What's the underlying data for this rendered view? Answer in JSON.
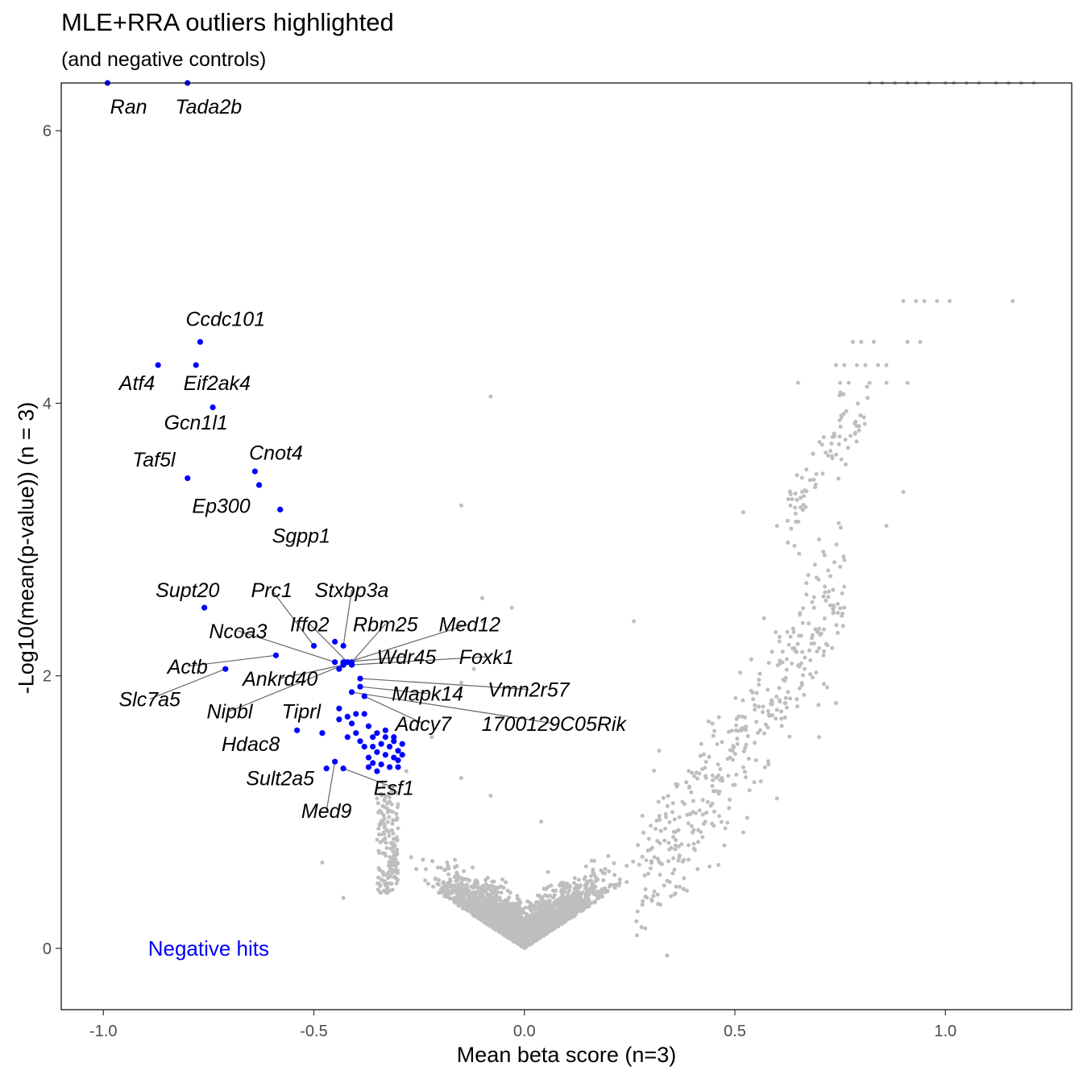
{
  "title": "MLE+RRA outliers highlighted",
  "subtitle": "(and negative controls)",
  "chart_data": {
    "type": "scatter",
    "xlabel": "Mean beta score (n=3)",
    "ylabel": "-Log10(mean(p-value)) (n = 3)",
    "xlim": [
      -1.1,
      1.3
    ],
    "ylim": [
      -0.45,
      6.35
    ],
    "xticks": [
      -1.0,
      -0.5,
      0.0,
      0.5,
      1.0
    ],
    "xtick_labels": [
      "-1.0",
      "-0.5",
      "0.0",
      "0.5",
      "1.0"
    ],
    "yticks": [
      0,
      2,
      4,
      6
    ],
    "ytick_labels": [
      "0",
      "2",
      "4",
      "6"
    ],
    "grid": false,
    "colors": {
      "highlight": "#0000ff",
      "background": "#bebebe",
      "leader": "#666666",
      "axis": "#000000"
    },
    "annotation": {
      "text": "Negative hits",
      "x": -0.75,
      "y": 0.0,
      "color": "#0000ff"
    },
    "labeled_points": [
      {
        "label": "Ran",
        "x": -0.99,
        "y": 6.35,
        "lx": -0.94,
        "ly": 6.18
      },
      {
        "label": "Tada2b",
        "x": -0.8,
        "y": 6.35,
        "lx": -0.75,
        "ly": 6.18
      },
      {
        "label": "Ccdc101",
        "x": -0.77,
        "y": 4.45,
        "lx": -0.71,
        "ly": 4.62
      },
      {
        "label": "Atf4",
        "x": -0.87,
        "y": 4.28,
        "lx": -0.92,
        "ly": 4.15
      },
      {
        "label": "Eif2ak4",
        "x": -0.78,
        "y": 4.28,
        "lx": -0.73,
        "ly": 4.15
      },
      {
        "label": "Gcn1l1",
        "x": -0.74,
        "y": 3.97,
        "lx": -0.78,
        "ly": 3.86
      },
      {
        "label": "Taf5l",
        "x": -0.8,
        "y": 3.45,
        "lx": -0.88,
        "ly": 3.59
      },
      {
        "label": "Cnot4",
        "x": -0.64,
        "y": 3.5,
        "lx": -0.59,
        "ly": 3.64
      },
      {
        "label": "Ep300",
        "x": -0.63,
        "y": 3.4,
        "lx": -0.72,
        "ly": 3.25
      },
      {
        "label": "Sgpp1",
        "x": -0.58,
        "y": 3.22,
        "lx": -0.53,
        "ly": 3.03
      },
      {
        "label": "Supt20",
        "x": -0.76,
        "y": 2.5,
        "lx": -0.8,
        "ly": 2.63
      },
      {
        "label": "Prc1",
        "x": -0.5,
        "y": 2.22,
        "lx": -0.6,
        "ly": 2.63
      },
      {
        "label": "Stxbp3a",
        "x": -0.43,
        "y": 2.22,
        "lx": -0.41,
        "ly": 2.63
      },
      {
        "label": "Iffo2",
        "x": -0.42,
        "y": 2.1,
        "lx": -0.51,
        "ly": 2.38
      },
      {
        "label": "Rbm25",
        "x": -0.41,
        "y": 2.1,
        "lx": -0.33,
        "ly": 2.38
      },
      {
        "label": "Med12",
        "x": -0.42,
        "y": 2.1,
        "lx": -0.13,
        "ly": 2.38
      },
      {
        "label": "Ncoa3",
        "x": -0.45,
        "y": 2.1,
        "lx": -0.68,
        "ly": 2.33
      },
      {
        "label": "Wdr45",
        "x": -0.43,
        "y": 2.1,
        "lx": -0.28,
        "ly": 2.14
      },
      {
        "label": "Foxk1",
        "x": -0.41,
        "y": 2.08,
        "lx": -0.09,
        "ly": 2.14
      },
      {
        "label": "Actb",
        "x": -0.59,
        "y": 2.15,
        "lx": -0.8,
        "ly": 2.07
      },
      {
        "label": "Ankrd40",
        "x": -0.43,
        "y": 2.08,
        "lx": -0.58,
        "ly": 1.98
      },
      {
        "label": "Slc7a5",
        "x": -0.71,
        "y": 2.05,
        "lx": -0.89,
        "ly": 1.83
      },
      {
        "label": "Vmn2r57",
        "x": -0.39,
        "y": 1.98,
        "lx": 0.01,
        "ly": 1.9
      },
      {
        "label": "Mapk14",
        "x": -0.39,
        "y": 1.92,
        "lx": -0.23,
        "ly": 1.87
      },
      {
        "label": "Nipbl",
        "x": -0.43,
        "y": 2.08,
        "lx": -0.7,
        "ly": 1.74
      },
      {
        "label": "Tiprl",
        "x": -0.44,
        "y": 1.76,
        "lx": -0.53,
        "ly": 1.74
      },
      {
        "label": "1700129C05Rik",
        "x": -0.41,
        "y": 1.88,
        "lx": 0.07,
        "ly": 1.65
      },
      {
        "label": "Adcy7",
        "x": -0.38,
        "y": 1.85,
        "lx": -0.24,
        "ly": 1.65
      },
      {
        "label": "Hdac8",
        "x": -0.54,
        "y": 1.6,
        "lx": -0.65,
        "ly": 1.5
      },
      {
        "label": "Sult2a5",
        "x": -0.47,
        "y": 1.32,
        "lx": -0.58,
        "ly": 1.25
      },
      {
        "label": "Esf1",
        "x": -0.43,
        "y": 1.32,
        "lx": -0.31,
        "ly": 1.18
      },
      {
        "label": "Med9",
        "x": -0.45,
        "y": 1.37,
        "lx": -0.47,
        "ly": 1.01
      }
    ],
    "unlabeled_highlight_points": [
      [
        -0.45,
        2.25
      ],
      [
        -0.44,
        2.05
      ],
      [
        -0.4,
        1.72
      ],
      [
        -0.38,
        1.72
      ],
      [
        -0.42,
        1.7
      ],
      [
        -0.44,
        1.68
      ],
      [
        -0.41,
        1.65
      ],
      [
        -0.37,
        1.63
      ],
      [
        -0.35,
        1.58
      ],
      [
        -0.36,
        1.55
      ],
      [
        -0.33,
        1.55
      ],
      [
        -0.31,
        1.52
      ],
      [
        -0.4,
        1.58
      ],
      [
        -0.38,
        1.48
      ],
      [
        -0.36,
        1.48
      ],
      [
        -0.34,
        1.5
      ],
      [
        -0.32,
        1.48
      ],
      [
        -0.3,
        1.45
      ],
      [
        -0.35,
        1.44
      ],
      [
        -0.33,
        1.42
      ],
      [
        -0.31,
        1.4
      ],
      [
        -0.3,
        1.38
      ],
      [
        -0.36,
        1.36
      ],
      [
        -0.34,
        1.35
      ],
      [
        -0.32,
        1.33
      ],
      [
        -0.3,
        1.33
      ],
      [
        -0.39,
        1.52
      ],
      [
        -0.37,
        1.4
      ],
      [
        -0.42,
        1.55
      ],
      [
        -0.35,
        1.3
      ],
      [
        -0.31,
        1.55
      ],
      [
        -0.29,
        1.42
      ],
      [
        -0.29,
        1.5
      ],
      [
        -0.33,
        1.6
      ],
      [
        -0.37,
        1.33
      ],
      [
        -0.48,
        1.58
      ]
    ],
    "background_points": [
      [
        0.82,
        6.35
      ],
      [
        0.85,
        6.35
      ],
      [
        0.88,
        6.35
      ],
      [
        0.91,
        6.35
      ],
      [
        0.93,
        6.35
      ],
      [
        0.96,
        6.35
      ],
      [
        1.0,
        6.35
      ],
      [
        1.02,
        6.35
      ],
      [
        1.05,
        6.35
      ],
      [
        1.08,
        6.35
      ],
      [
        1.12,
        6.35
      ],
      [
        1.15,
        6.35
      ],
      [
        1.18,
        6.35
      ],
      [
        1.21,
        6.35
      ],
      [
        0.9,
        4.75
      ],
      [
        0.93,
        4.75
      ],
      [
        0.95,
        4.75
      ],
      [
        0.98,
        4.75
      ],
      [
        1.01,
        4.75
      ],
      [
        1.16,
        4.75
      ],
      [
        0.78,
        4.45
      ],
      [
        0.8,
        4.45
      ],
      [
        0.83,
        4.45
      ],
      [
        0.91,
        4.45
      ],
      [
        0.94,
        4.45
      ],
      [
        0.74,
        4.28
      ],
      [
        0.76,
        4.28
      ],
      [
        0.79,
        4.28
      ],
      [
        0.81,
        4.28
      ],
      [
        0.84,
        4.28
      ],
      [
        0.86,
        4.28
      ],
      [
        0.75,
        4.15
      ],
      [
        0.77,
        4.15
      ],
      [
        0.82,
        4.15
      ],
      [
        0.86,
        4.15
      ],
      [
        0.91,
        4.15
      ],
      [
        0.65,
        4.15
      ],
      [
        -0.08,
        4.05
      ],
      [
        -0.15,
        3.25
      ],
      [
        0.9,
        3.35
      ],
      [
        0.86,
        3.1
      ],
      [
        0.76,
        2.5
      ],
      [
        0.52,
        3.2
      ],
      [
        0.6,
        3.1
      ],
      [
        0.7,
        3.0
      ],
      [
        0.76,
        2.85
      ],
      [
        -0.1,
        2.57
      ],
      [
        -0.03,
        2.5
      ],
      [
        0.26,
        2.4
      ],
      [
        -0.1,
        2.4
      ],
      [
        -0.12,
        2.05
      ],
      [
        -0.15,
        1.95
      ],
      [
        -0.22,
        1.55
      ],
      [
        -0.28,
        1.3
      ],
      [
        0.32,
        1.45
      ],
      [
        0.42,
        1.5
      ],
      [
        0.46,
        1.35
      ],
      [
        0.5,
        1.2
      ],
      [
        0.56,
        1.6
      ],
      [
        0.6,
        1.75
      ],
      [
        0.62,
        1.8
      ],
      [
        0.74,
        1.8
      ],
      [
        0.7,
        1.55
      ],
      [
        0.58,
        1.35
      ],
      [
        0.6,
        1.1
      ],
      [
        0.52,
        0.85
      ],
      [
        0.45,
        0.9
      ],
      [
        0.4,
        0.85
      ],
      [
        0.44,
        0.6
      ],
      [
        0.3,
        0.9
      ],
      [
        -0.48,
        0.63
      ],
      [
        -0.43,
        0.37
      ],
      [
        -0.35,
        1.1
      ],
      [
        -0.15,
        1.25
      ],
      [
        -0.08,
        1.12
      ],
      [
        0.04,
        0.93
      ]
    ]
  }
}
